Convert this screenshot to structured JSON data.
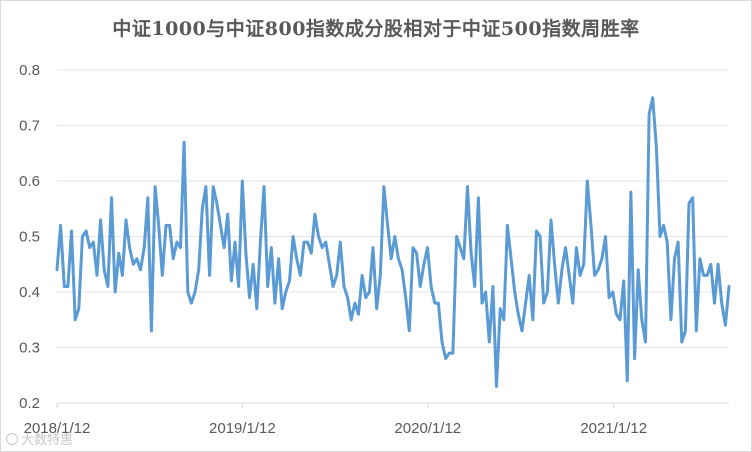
{
  "chart_data": {
    "type": "line",
    "title": "中证1000与中证800指数成分股相对于中证500指数周胜率",
    "xlabel": "",
    "ylabel": "",
    "ylim": [
      0.2,
      0.8
    ],
    "yticks": [
      "0.2",
      "0.3",
      "0.4",
      "0.5",
      "0.6",
      "0.7",
      "0.8"
    ],
    "xticks": [
      "2018/1/12",
      "2019/1/12",
      "2020/1/12",
      "2021/1/12"
    ],
    "xrange": [
      "2018/1/12",
      "2021/8/27"
    ],
    "grid": "horizontal",
    "legend": "none",
    "line_color": "#5b9bd5",
    "series": [
      {
        "values": [
          0.44,
          0.52,
          0.41,
          0.41,
          0.51,
          0.35,
          0.37,
          0.5,
          0.51,
          0.48,
          0.49,
          0.43,
          0.53,
          0.44,
          0.41,
          0.57,
          0.4,
          0.47,
          0.43,
          0.53,
          0.48,
          0.45,
          0.46,
          0.44,
          0.48,
          0.57,
          0.33,
          0.59,
          0.52,
          0.43,
          0.52,
          0.52,
          0.46,
          0.49,
          0.48,
          0.67,
          0.4,
          0.38,
          0.4,
          0.44,
          0.55,
          0.59,
          0.43,
          0.59,
          0.56,
          0.52,
          0.48,
          0.54,
          0.42,
          0.49,
          0.41,
          0.6,
          0.47,
          0.39,
          0.45,
          0.37,
          0.49,
          0.59,
          0.41,
          0.48,
          0.38,
          0.46,
          0.37,
          0.4,
          0.42,
          0.5,
          0.46,
          0.43,
          0.49,
          0.49,
          0.47,
          0.54,
          0.5,
          0.48,
          0.49,
          0.45,
          0.41,
          0.43,
          0.49,
          0.41,
          0.39,
          0.35,
          0.38,
          0.36,
          0.43,
          0.39,
          0.4,
          0.48,
          0.37,
          0.43,
          0.59,
          0.52,
          0.46,
          0.5,
          0.46,
          0.44,
          0.39,
          0.33,
          0.48,
          0.47,
          0.41,
          0.45,
          0.48,
          0.41,
          0.38,
          0.38,
          0.31,
          0.28,
          0.29,
          0.29,
          0.5,
          0.48,
          0.46,
          0.59,
          0.47,
          0.41,
          0.57,
          0.38,
          0.4,
          0.31,
          0.41,
          0.23,
          0.37,
          0.35,
          0.52,
          0.46,
          0.4,
          0.36,
          0.33,
          0.38,
          0.43,
          0.35,
          0.51,
          0.5,
          0.38,
          0.4,
          0.53,
          0.45,
          0.38,
          0.44,
          0.48,
          0.43,
          0.38,
          0.48,
          0.43,
          0.45,
          0.6,
          0.52,
          0.43,
          0.44,
          0.46,
          0.5,
          0.39,
          0.4,
          0.36,
          0.35,
          0.42,
          0.24,
          0.58,
          0.28,
          0.44,
          0.35,
          0.31,
          0.72,
          0.75,
          0.66,
          0.5,
          0.52,
          0.49,
          0.35,
          0.46,
          0.49,
          0.31,
          0.33,
          0.56,
          0.57,
          0.33,
          0.46,
          0.43,
          0.43,
          0.45,
          0.38,
          0.45,
          0.38,
          0.34,
          0.41
        ]
      }
    ],
    "watermark": "大数特惠"
  }
}
